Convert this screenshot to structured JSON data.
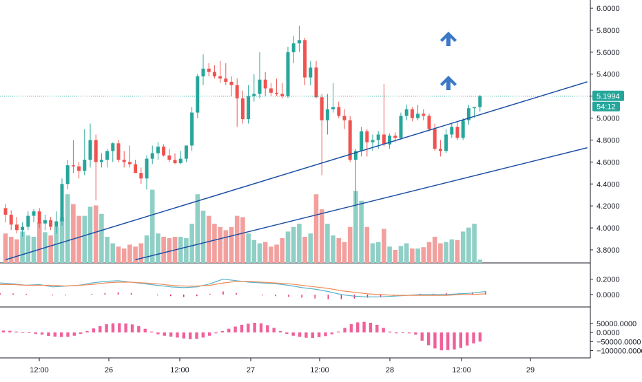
{
  "chart_data": [
    {
      "panel": "price",
      "type": "candlestick",
      "title": "",
      "ylim": [
        3.7,
        6.1
      ],
      "y_ticks": [
        "6.0000",
        "5.8000",
        "5.6000",
        "5.4000",
        "5.2000",
        "5.0000",
        "4.8000",
        "4.6000",
        "4.4000",
        "4.2000",
        "4.0000",
        "3.8000"
      ],
      "last_price_label": "5.1994",
      "countdown_label": "54:12",
      "last_price": 5.1994,
      "x_ticks": [
        "12:00",
        "26",
        "12:00",
        "27",
        "12:00",
        "28",
        "12:00",
        "29"
      ],
      "candles": [
        [
          4.18,
          4.22,
          4.05,
          4.12
        ],
        [
          4.12,
          4.16,
          3.98,
          4.03
        ],
        [
          4.03,
          4.1,
          3.95,
          3.98
        ],
        [
          3.98,
          4.05,
          3.92,
          4.01
        ],
        [
          4.01,
          4.15,
          3.98,
          4.11
        ],
        [
          4.11,
          4.17,
          4.05,
          4.15
        ],
        [
          4.15,
          4.18,
          4.0,
          4.04
        ],
        [
          4.04,
          4.12,
          3.98,
          4.07
        ],
        [
          4.07,
          4.1,
          3.98,
          4.01
        ],
        [
          4.01,
          4.15,
          3.95,
          4.06
        ],
        [
          4.06,
          4.45,
          4.02,
          4.4
        ],
        [
          4.4,
          4.62,
          4.35,
          4.57
        ],
        [
          4.57,
          4.8,
          4.5,
          4.56
        ],
        [
          4.56,
          4.6,
          4.45,
          4.52
        ],
        [
          4.52,
          4.9,
          4.48,
          4.62
        ],
        [
          4.62,
          4.95,
          4.55,
          4.8
        ],
        [
          4.8,
          4.85,
          4.25,
          4.6
        ],
        [
          4.6,
          4.68,
          4.55,
          4.62
        ],
        [
          4.62,
          4.72,
          4.55,
          4.7
        ],
        [
          4.7,
          4.78,
          4.6,
          4.77
        ],
        [
          4.77,
          4.8,
          4.6,
          4.62
        ],
        [
          4.62,
          4.7,
          4.55,
          4.6
        ],
        [
          4.6,
          4.75,
          4.55,
          4.58
        ],
        [
          4.58,
          4.62,
          4.5,
          4.5
        ],
        [
          4.5,
          4.55,
          4.4,
          4.45
        ],
        [
          4.45,
          4.66,
          4.35,
          4.63
        ],
        [
          4.63,
          4.75,
          4.58,
          4.68
        ],
        [
          4.68,
          4.78,
          4.62,
          4.74
        ],
        [
          4.74,
          4.76,
          4.65,
          4.66
        ],
        [
          4.66,
          4.72,
          4.6,
          4.62
        ],
        [
          4.62,
          4.68,
          4.58,
          4.59
        ],
        [
          4.59,
          4.7,
          4.58,
          4.63
        ],
        [
          4.63,
          4.74,
          4.6,
          4.75
        ],
        [
          4.75,
          5.1,
          4.7,
          5.05
        ],
        [
          5.05,
          5.4,
          5.0,
          5.38
        ],
        [
          5.38,
          5.58,
          5.3,
          5.45
        ],
        [
          5.45,
          5.5,
          5.38,
          5.42
        ],
        [
          5.42,
          5.48,
          5.36,
          5.38
        ],
        [
          5.38,
          5.52,
          5.32,
          5.36
        ],
        [
          5.36,
          5.5,
          5.3,
          5.33
        ],
        [
          5.33,
          5.38,
          5.2,
          5.3
        ],
        [
          5.3,
          5.36,
          4.92,
          5.18
        ],
        [
          5.18,
          5.25,
          4.95,
          4.99
        ],
        [
          4.99,
          5.3,
          4.95,
          5.2
        ],
        [
          5.2,
          5.4,
          5.15,
          5.22
        ],
        [
          5.22,
          5.6,
          5.18,
          5.35
        ],
        [
          5.35,
          5.42,
          5.2,
          5.27
        ],
        [
          5.27,
          5.32,
          5.2,
          5.23
        ],
        [
          5.23,
          5.36,
          5.2,
          5.22
        ],
        [
          5.22,
          5.32,
          5.18,
          5.2
        ],
        [
          5.2,
          5.65,
          5.18,
          5.6
        ],
        [
          5.6,
          5.75,
          5.5,
          5.68
        ],
        [
          5.68,
          5.84,
          5.6,
          5.71
        ],
        [
          5.71,
          5.73,
          5.3,
          5.37
        ],
        [
          5.37,
          5.52,
          5.3,
          5.46
        ],
        [
          5.46,
          5.52,
          5.18,
          5.19
        ],
        [
          5.19,
          5.22,
          4.48,
          4.98
        ],
        [
          4.98,
          5.22,
          4.85,
          5.08
        ],
        [
          5.08,
          5.32,
          5.05,
          5.1
        ],
        [
          5.1,
          5.15,
          5.0,
          5.02
        ],
        [
          5.02,
          5.08,
          4.9,
          4.98
        ],
        [
          4.98,
          5.02,
          4.6,
          4.62
        ],
        [
          4.62,
          4.72,
          4.2,
          4.7
        ],
        [
          4.7,
          4.92,
          4.65,
          4.88
        ],
        [
          4.88,
          4.9,
          4.65,
          4.78
        ],
        [
          4.78,
          4.85,
          4.7,
          4.8
        ],
        [
          4.8,
          4.88,
          4.72,
          4.85
        ],
        [
          4.85,
          5.31,
          4.74,
          4.76
        ],
        [
          4.76,
          4.86,
          4.72,
          4.84
        ],
        [
          4.84,
          4.87,
          4.78,
          4.82
        ],
        [
          4.82,
          5.05,
          4.8,
          5.02
        ],
        [
          5.02,
          5.12,
          4.98,
          5.08
        ],
        [
          5.08,
          5.1,
          4.97,
          5.0
        ],
        [
          5.0,
          5.12,
          4.98,
          5.04
        ],
        [
          5.04,
          5.08,
          4.98,
          5.02
        ],
        [
          5.02,
          5.04,
          4.88,
          4.9
        ],
        [
          4.9,
          4.95,
          4.7,
          4.72
        ],
        [
          4.72,
          4.8,
          4.65,
          4.7
        ],
        [
          4.7,
          4.9,
          4.68,
          4.85
        ],
        [
          4.85,
          4.95,
          4.82,
          4.92
        ],
        [
          4.92,
          4.96,
          4.8,
          4.82
        ],
        [
          4.82,
          5.0,
          4.8,
          4.98
        ],
        [
          4.98,
          5.12,
          4.94,
          5.09
        ],
        [
          5.09,
          5.1,
          5.0,
          5.1
        ],
        [
          5.1,
          5.21,
          5.06,
          5.1994
        ]
      ],
      "volume": [
        0.45,
        0.4,
        0.36,
        0.48,
        0.42,
        0.4,
        0.62,
        0.47,
        0.42,
        0.55,
        0.7,
        1.05,
        0.9,
        0.72,
        0.72,
        0.86,
        0.88,
        0.75,
        0.4,
        0.3,
        0.25,
        0.22,
        0.28,
        0.25,
        0.3,
        0.42,
        1.12,
        0.45,
        0.4,
        0.38,
        0.4,
        0.4,
        0.38,
        0.6,
        1.05,
        0.8,
        0.72,
        0.6,
        0.55,
        0.5,
        0.55,
        0.72,
        0.7,
        0.45,
        0.35,
        0.3,
        0.32,
        0.25,
        0.28,
        0.38,
        0.48,
        0.55,
        0.6,
        0.4,
        0.45,
        1.05,
        0.82,
        0.6,
        0.42,
        0.38,
        0.32,
        0.55,
        1.1,
        0.95,
        0.55,
        0.3,
        0.32,
        0.52,
        0.25,
        0.2,
        0.26,
        0.3,
        0.22,
        0.22,
        0.24,
        0.32,
        0.4,
        0.3,
        0.32,
        0.36,
        0.35,
        0.48,
        0.54,
        0.6,
        0.05
      ],
      "channel_lines": [
        {
          "from": [
            0,
            3.71
          ],
          "to": [
            103,
            5.33
          ]
        },
        {
          "from": [
            23,
            3.71
          ],
          "to": [
            103,
            4.73
          ]
        }
      ],
      "markers": [
        "arrow-up",
        "arrow-up"
      ],
      "colors": {
        "up": "#26a69a",
        "down": "#ef5350",
        "up_volume": "#8fcfc6",
        "down_volume": "#f2a09e",
        "channel": "#1c4fa5",
        "marker": "#3b78c6",
        "price_line": "#26a69a"
      }
    },
    {
      "panel": "oscillator",
      "type": "line",
      "title": "",
      "ylim": [
        -0.08,
        0.36
      ],
      "y_ticks": [
        "0.2000",
        "0.0000"
      ],
      "series": [
        {
          "color": "#56b2c8",
          "values": [
            0.15,
            0.14,
            0.12,
            0.13,
            0.1,
            0.11,
            0.12,
            0.15,
            0.17,
            0.18,
            0.16,
            0.14,
            0.12,
            0.1,
            0.09,
            0.1,
            0.14,
            0.2,
            0.18,
            0.16,
            0.15,
            0.14,
            0.12,
            0.09,
            0.07,
            0.04,
            0.0,
            -0.02,
            -0.03,
            -0.03,
            -0.02,
            -0.01,
            0.0,
            0.0,
            0.0,
            0.01,
            0.02,
            0.04
          ]
        },
        {
          "color": "#f28b5a",
          "values": [
            0.13,
            0.13,
            0.12,
            0.12,
            0.12,
            0.11,
            0.12,
            0.13,
            0.15,
            0.16,
            0.16,
            0.15,
            0.14,
            0.12,
            0.11,
            0.11,
            0.12,
            0.15,
            0.17,
            0.17,
            0.16,
            0.15,
            0.14,
            0.12,
            0.1,
            0.08,
            0.05,
            0.03,
            0.01,
            0.0,
            -0.01,
            -0.01,
            -0.01,
            -0.01,
            -0.01,
            0.0,
            0.0,
            0.01
          ]
        }
      ],
      "histogram": [
        0.02,
        0.015,
        0.01,
        0.0,
        -0.01,
        -0.01,
        0.0,
        0.01,
        0.02,
        0.03,
        0.02,
        0.0,
        -0.01,
        -0.02,
        -0.03,
        -0.02,
        0.01,
        0.04,
        0.02,
        0.0,
        -0.01,
        -0.02,
        -0.03,
        -0.04,
        -0.05,
        -0.06,
        -0.06,
        -0.05,
        -0.04,
        -0.03,
        -0.01,
        0.0,
        0.01,
        0.01,
        0.02,
        0.02,
        0.03,
        0.04
      ],
      "colors": {
        "histogram": "#e91e63"
      }
    },
    {
      "panel": "histogram",
      "type": "bar",
      "title": "",
      "ylim": [
        -115000,
        62000
      ],
      "y_ticks": [
        "50000.0000",
        "0.0000",
        "−50000.0000",
        "−100000.0000"
      ],
      "values": [
        10000,
        9000,
        5000,
        1000,
        -2000,
        -8000,
        -12000,
        -19000,
        -23000,
        -25000,
        -24000,
        -18000,
        -8000,
        8000,
        22000,
        35000,
        45000,
        50000,
        51000,
        49000,
        44000,
        35000,
        20000,
        5000,
        -10000,
        -18000,
        -23000,
        -28000,
        -33000,
        -37000,
        -35000,
        -28000,
        -18000,
        -5000,
        8000,
        20000,
        32000,
        42000,
        48000,
        53000,
        50000,
        40000,
        25000,
        8000,
        -8000,
        -18000,
        -24000,
        -29000,
        -30000,
        -26000,
        -20000,
        -10000,
        5000,
        25000,
        45000,
        55000,
        58000,
        53000,
        42000,
        25000,
        5000,
        -5000,
        -3000,
        -5000,
        -12000,
        -45000,
        -70000,
        -88000,
        -98000,
        -97000,
        -93000,
        -85000,
        -72000,
        -60000,
        -50000
      ],
      "colors": {
        "bar": "#f0609a"
      }
    }
  ]
}
